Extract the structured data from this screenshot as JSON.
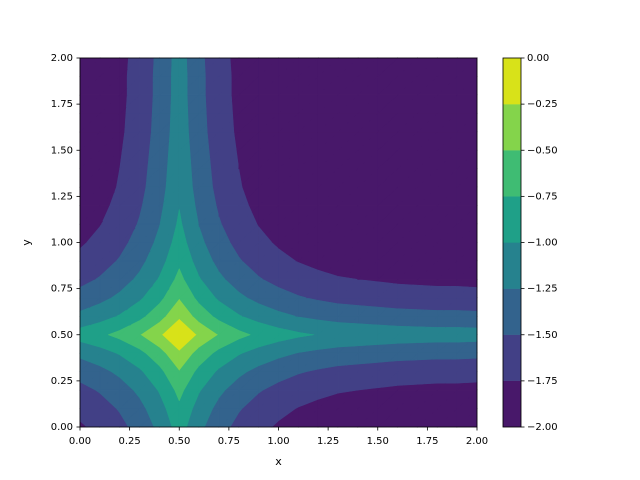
{
  "chart_data": {
    "type": "contourf",
    "xlabel": "x",
    "ylabel": "y",
    "xlim": [
      0,
      2
    ],
    "ylim": [
      0,
      2
    ],
    "xticks": [
      {
        "value": 0,
        "label": "0.00"
      },
      {
        "value": 0.25,
        "label": "0.25"
      },
      {
        "value": 0.5,
        "label": "0.50"
      },
      {
        "value": 0.75,
        "label": "0.75"
      },
      {
        "value": 1,
        "label": "1.00"
      },
      {
        "value": 1.25,
        "label": "1.25"
      },
      {
        "value": 1.5,
        "label": "1.50"
      },
      {
        "value": 1.75,
        "label": "1.75"
      },
      {
        "value": 2,
        "label": "2.00"
      }
    ],
    "yticks": [
      {
        "value": 0,
        "label": "0.00"
      },
      {
        "value": 0.25,
        "label": "0.25"
      },
      {
        "value": 0.5,
        "label": "0.50"
      },
      {
        "value": 0.75,
        "label": "0.75"
      },
      {
        "value": 1,
        "label": "1.00"
      },
      {
        "value": 1.25,
        "label": "1.25"
      },
      {
        "value": 1.5,
        "label": "1.50"
      },
      {
        "value": 1.75,
        "label": "1.75"
      },
      {
        "value": 2,
        "label": "2.00"
      }
    ],
    "levels": [
      -2,
      -1.75,
      -1.5,
      -1.25,
      -1,
      -0.75,
      -0.5,
      -0.25,
      0
    ],
    "colors": [
      "#48186a",
      "#424086",
      "#33638d",
      "#26828e",
      "#1fa088",
      "#3fbc73",
      "#84d44b",
      "#d8e219"
    ],
    "colorbar_ticks": [
      {
        "value": -2,
        "label": "−2.00"
      },
      {
        "value": -1.75,
        "label": "−1.75"
      },
      {
        "value": -1.5,
        "label": "−1.50"
      },
      {
        "value": -1.25,
        "label": "−1.25"
      },
      {
        "value": -1,
        "label": "−1.00"
      },
      {
        "value": -0.75,
        "label": "−0.75"
      },
      {
        "value": -0.5,
        "label": "−0.50"
      },
      {
        "value": -0.25,
        "label": "−0.25"
      },
      {
        "value": 0,
        "label": "0.00"
      }
    ],
    "x": [
      0,
      0.1,
      0.2,
      0.3,
      0.4,
      0.5,
      0.6,
      0.7,
      0.8,
      0.9,
      1,
      1.1,
      1.2,
      1.3,
      1.4,
      1.5,
      1.6,
      1.7,
      1.8,
      1.9,
      2
    ],
    "y": [
      0,
      0.1,
      0.2,
      0.3,
      0.4,
      0.5,
      0.6,
      0.7,
      0.8,
      0.9,
      1,
      1.1,
      1.2,
      1.3,
      1.4,
      1.5,
      1.6,
      1.7,
      1.8,
      1.9,
      2
    ],
    "z": [
      [
        -1.78,
        -1.69,
        -1.57,
        -1.41,
        -1.19,
        -0.89,
        -1.19,
        -1.41,
        -1.57,
        -1.69,
        -1.78,
        -1.85,
        -1.9,
        -1.94,
        -1.96,
        -1.98,
        -1.99,
        -1.99,
        -1.99,
        -1.99,
        -1.99
      ],
      [
        -1.69,
        -1.6,
        -1.48,
        -1.32,
        -1.1,
        -0.8,
        -1.1,
        -1.32,
        -1.48,
        -1.6,
        -1.69,
        -1.76,
        -1.81,
        -1.85,
        -1.87,
        -1.89,
        -1.91,
        -1.92,
        -1.93,
        -1.93,
        -1.94
      ],
      [
        -1.57,
        -1.48,
        -1.36,
        -1.2,
        -0.98,
        -0.68,
        -0.98,
        -1.2,
        -1.36,
        -1.48,
        -1.57,
        -1.64,
        -1.69,
        -1.73,
        -1.75,
        -1.77,
        -1.79,
        -1.8,
        -1.81,
        -1.81,
        -1.82
      ],
      [
        -1.41,
        -1.32,
        -1.2,
        -1.04,
        -0.82,
        -0.52,
        -0.82,
        -1.04,
        -1.2,
        -1.32,
        -1.41,
        -1.48,
        -1.53,
        -1.57,
        -1.59,
        -1.61,
        -1.63,
        -1.64,
        -1.65,
        -1.65,
        -1.66
      ],
      [
        -1.19,
        -1.1,
        -0.98,
        -0.82,
        -0.6,
        -0.3,
        -0.6,
        -0.82,
        -0.98,
        -1.1,
        -1.19,
        -1.26,
        -1.31,
        -1.35,
        -1.37,
        -1.39,
        -1.41,
        -1.42,
        -1.43,
        -1.43,
        -1.44
      ],
      [
        -0.89,
        -0.8,
        -0.68,
        -0.52,
        -0.3,
        0,
        -0.3,
        -0.52,
        -0.68,
        -0.8,
        -0.89,
        -0.96,
        -1.01,
        -1.05,
        -1.07,
        -1.09,
        -1.11,
        -1.12,
        -1.13,
        -1.13,
        -1.14
      ],
      [
        -1.19,
        -1.1,
        -0.98,
        -0.82,
        -0.6,
        -0.3,
        -0.6,
        -0.82,
        -0.98,
        -1.1,
        -1.19,
        -1.26,
        -1.31,
        -1.35,
        -1.37,
        -1.39,
        -1.41,
        -1.42,
        -1.43,
        -1.43,
        -1.44
      ],
      [
        -1.41,
        -1.32,
        -1.2,
        -1.04,
        -0.82,
        -0.52,
        -0.82,
        -1.04,
        -1.2,
        -1.32,
        -1.41,
        -1.48,
        -1.53,
        -1.57,
        -1.59,
        -1.61,
        -1.63,
        -1.64,
        -1.65,
        -1.65,
        -1.66
      ],
      [
        -1.57,
        -1.48,
        -1.36,
        -1.2,
        -0.98,
        -0.68,
        -0.98,
        -1.2,
        -1.36,
        -1.48,
        -1.57,
        -1.64,
        -1.69,
        -1.73,
        -1.75,
        -1.77,
        -1.79,
        -1.8,
        -1.81,
        -1.81,
        -1.82
      ],
      [
        -1.69,
        -1.6,
        -1.48,
        -1.32,
        -1.1,
        -0.8,
        -1.1,
        -1.32,
        -1.48,
        -1.6,
        -1.69,
        -1.76,
        -1.81,
        -1.85,
        -1.87,
        -1.89,
        -1.91,
        -1.92,
        -1.93,
        -1.93,
        -1.94
      ],
      [
        -1.78,
        -1.69,
        -1.57,
        -1.41,
        -1.19,
        -0.89,
        -1.19,
        -1.41,
        -1.57,
        -1.69,
        -1.78,
        -1.85,
        -1.9,
        -1.94,
        -1.96,
        -1.98,
        -1.99,
        -1.99,
        -1.99,
        -1.99,
        -1.99
      ],
      [
        -1.85,
        -1.76,
        -1.64,
        -1.48,
        -1.26,
        -0.96,
        -1.26,
        -1.48,
        -1.64,
        -1.76,
        -1.85,
        -1.92,
        -1.97,
        -1.99,
        -1.99,
        -1.99,
        -1.99,
        -1.99,
        -1.99,
        -1.99,
        -1.99
      ],
      [
        -1.9,
        -1.81,
        -1.69,
        -1.53,
        -1.31,
        -1.01,
        -1.31,
        -1.53,
        -1.69,
        -1.81,
        -1.9,
        -1.97,
        -1.99,
        -1.99,
        -1.99,
        -1.99,
        -1.99,
        -1.99,
        -1.99,
        -1.99,
        -1.99
      ],
      [
        -1.94,
        -1.85,
        -1.73,
        -1.57,
        -1.35,
        -1.05,
        -1.35,
        -1.57,
        -1.73,
        -1.85,
        -1.94,
        -1.99,
        -1.99,
        -1.99,
        -1.99,
        -1.99,
        -1.99,
        -1.99,
        -1.99,
        -1.99,
        -1.99
      ],
      [
        -1.96,
        -1.87,
        -1.75,
        -1.59,
        -1.37,
        -1.07,
        -1.37,
        -1.59,
        -1.75,
        -1.87,
        -1.96,
        -1.99,
        -1.99,
        -1.99,
        -1.99,
        -1.99,
        -1.99,
        -1.99,
        -1.99,
        -1.99,
        -1.99
      ],
      [
        -1.98,
        -1.89,
        -1.77,
        -1.61,
        -1.39,
        -1.09,
        -1.39,
        -1.61,
        -1.77,
        -1.89,
        -1.98,
        -1.99,
        -1.99,
        -1.99,
        -1.99,
        -1.99,
        -1.99,
        -1.99,
        -1.99,
        -1.99,
        -1.99
      ],
      [
        -1.99,
        -1.91,
        -1.79,
        -1.63,
        -1.41,
        -1.11,
        -1.41,
        -1.63,
        -1.79,
        -1.91,
        -1.99,
        -1.99,
        -1.99,
        -1.99,
        -1.99,
        -1.99,
        -1.99,
        -1.99,
        -1.99,
        -1.99,
        -1.99
      ],
      [
        -1.99,
        -1.92,
        -1.8,
        -1.64,
        -1.42,
        -1.12,
        -1.42,
        -1.64,
        -1.8,
        -1.92,
        -1.99,
        -1.99,
        -1.99,
        -1.99,
        -1.99,
        -1.99,
        -1.99,
        -1.99,
        -1.99,
        -1.99,
        -1.99
      ],
      [
        -1.99,
        -1.93,
        -1.81,
        -1.65,
        -1.43,
        -1.13,
        -1.43,
        -1.65,
        -1.81,
        -1.93,
        -1.99,
        -1.99,
        -1.99,
        -1.99,
        -1.99,
        -1.99,
        -1.99,
        -1.99,
        -1.99,
        -1.99,
        -1.99
      ],
      [
        -1.99,
        -1.93,
        -1.81,
        -1.65,
        -1.43,
        -1.13,
        -1.43,
        -1.65,
        -1.81,
        -1.93,
        -1.99,
        -1.99,
        -1.99,
        -1.99,
        -1.99,
        -1.99,
        -1.99,
        -1.99,
        -1.99,
        -1.99,
        -1.99
      ],
      [
        -1.99,
        -1.94,
        -1.82,
        -1.66,
        -1.44,
        -1.14,
        -1.44,
        -1.66,
        -1.82,
        -1.94,
        -1.99,
        -1.99,
        -1.99,
        -1.99,
        -1.99,
        -1.99,
        -1.99,
        -1.99,
        -1.99,
        -1.99,
        -1.99
      ]
    ]
  }
}
